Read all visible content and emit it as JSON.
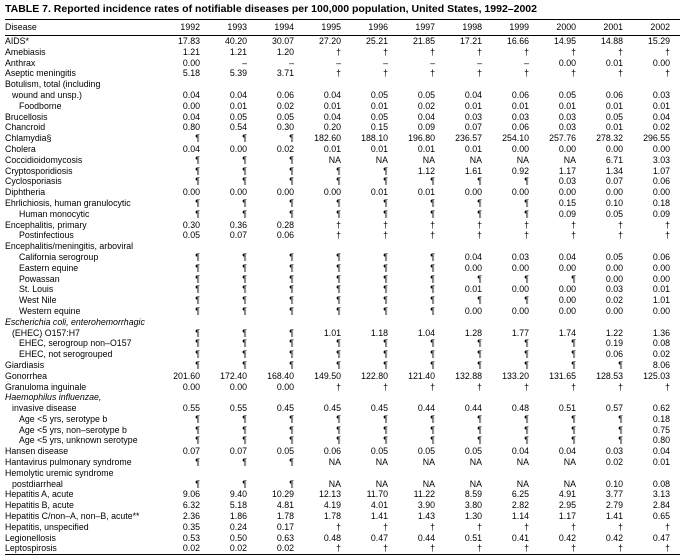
{
  "title": "TABLE 7.  Reported incidence rates of notifiable diseases per 100,000 population, United States, 1992–2002",
  "table": {
    "columns": [
      "Disease",
      "1992",
      "1993",
      "1994",
      "1995",
      "1996",
      "1997",
      "1998",
      "1999",
      "2000",
      "2001",
      "2002"
    ],
    "rows": [
      {
        "label": "AIDS*",
        "indent": 0,
        "italic": false,
        "values": [
          "17.83",
          "40.20",
          "30.07",
          "27.20",
          "25.21",
          "21.85",
          "17.21",
          "16.66",
          "14.95",
          "14.88",
          "15.29"
        ]
      },
      {
        "label": "Amebiasis",
        "indent": 0,
        "italic": false,
        "values": [
          "1.21",
          "1.21",
          "1.20",
          "†",
          "†",
          "†",
          "†",
          "†",
          "†",
          "†",
          "†"
        ]
      },
      {
        "label": "Anthrax",
        "indent": 0,
        "italic": false,
        "values": [
          "0.00",
          "–",
          "–",
          "–",
          "–",
          "–",
          "–",
          "–",
          "0.00",
          "0.01",
          "0.00"
        ]
      },
      {
        "label": "Aseptic meningitis",
        "indent": 0,
        "italic": false,
        "values": [
          "5.18",
          "5.39",
          "3.71",
          "†",
          "†",
          "†",
          "†",
          "†",
          "†",
          "†",
          "†"
        ]
      },
      {
        "label": "Botulism, total (including",
        "indent": 0,
        "italic": false,
        "values": []
      },
      {
        "label": "wound and unsp.)",
        "indent": 1,
        "italic": false,
        "values": [
          "0.04",
          "0.04",
          "0.06",
          "0.04",
          "0.05",
          "0.05",
          "0.04",
          "0.06",
          "0.05",
          "0.06",
          "0.03"
        ]
      },
      {
        "label": "Foodborne",
        "indent": 2,
        "italic": false,
        "values": [
          "0.00",
          "0.01",
          "0.02",
          "0.01",
          "0.01",
          "0.02",
          "0.01",
          "0.01",
          "0.01",
          "0.01",
          "0.01"
        ]
      },
      {
        "label": "Brucellosis",
        "indent": 0,
        "italic": false,
        "values": [
          "0.04",
          "0.05",
          "0.05",
          "0.04",
          "0.05",
          "0.04",
          "0.03",
          "0.03",
          "0.03",
          "0.05",
          "0.04"
        ]
      },
      {
        "label": "Chancroid",
        "indent": 0,
        "italic": false,
        "values": [
          "0.80",
          "0.54",
          "0.30",
          "0.20",
          "0.15",
          "0.09",
          "0.07",
          "0.06",
          "0.03",
          "0.01",
          "0.02"
        ]
      },
      {
        "label": "Chlamydia§",
        "indent": 0,
        "italic": false,
        "values": [
          "¶",
          "¶",
          "¶",
          "182.60",
          "188.10",
          "196.80",
          "236.57",
          "254.10",
          "257.76",
          "278.32",
          "296.55"
        ]
      },
      {
        "label": "Cholera",
        "indent": 0,
        "italic": false,
        "values": [
          "0.04",
          "0.00",
          "0.02",
          "0.01",
          "0.01",
          "0.01",
          "0.01",
          "0.00",
          "0.00",
          "0.00",
          "0.00"
        ]
      },
      {
        "label": "Coccidioidomycosis",
        "indent": 0,
        "italic": false,
        "values": [
          "¶",
          "¶",
          "¶",
          "NA",
          "NA",
          "NA",
          "NA",
          "NA",
          "NA",
          "6.71",
          "3.03"
        ]
      },
      {
        "label": "Cryptosporidiosis",
        "indent": 0,
        "italic": false,
        "values": [
          "¶",
          "¶",
          "¶",
          "¶",
          "¶",
          "1.12",
          "1.61",
          "0.92",
          "1.17",
          "1.34",
          "1.07"
        ]
      },
      {
        "label": "Cyclosporiasis",
        "indent": 0,
        "italic": false,
        "values": [
          "¶",
          "¶",
          "¶",
          "¶",
          "¶",
          "¶",
          "¶",
          "¶",
          "0.03",
          "0.07",
          "0.06"
        ]
      },
      {
        "label": "Diphtheria",
        "indent": 0,
        "italic": false,
        "values": [
          "0.00",
          "0.00",
          "0.00",
          "0.00",
          "0.01",
          "0.01",
          "0.00",
          "0.00",
          "0.00",
          "0.00",
          "0.00"
        ]
      },
      {
        "label": "Ehrlichiosis, human granulocytic",
        "indent": 0,
        "italic": false,
        "values": [
          "¶",
          "¶",
          "¶",
          "¶",
          "¶",
          "¶",
          "¶",
          "¶",
          "0.15",
          "0.10",
          "0.18"
        ]
      },
      {
        "label": "Human monocytic",
        "indent": 2,
        "italic": false,
        "values": [
          "¶",
          "¶",
          "¶",
          "¶",
          "¶",
          "¶",
          "¶",
          "¶",
          "0.09",
          "0.05",
          "0.09"
        ]
      },
      {
        "label": "Encephalitis, primary",
        "indent": 0,
        "italic": false,
        "values": [
          "0.30",
          "0.36",
          "0.28",
          "†",
          "†",
          "†",
          "†",
          "†",
          "†",
          "†",
          "†"
        ]
      },
      {
        "label": "Postinfectious",
        "indent": 2,
        "italic": false,
        "values": [
          "0.05",
          "0.07",
          "0.06",
          "†",
          "†",
          "†",
          "†",
          "†",
          "†",
          "†",
          "†"
        ]
      },
      {
        "label": "Encephalitis/meningitis, arboviral",
        "indent": 0,
        "italic": false,
        "values": []
      },
      {
        "label": "California serogroup",
        "indent": 2,
        "italic": false,
        "values": [
          "¶",
          "¶",
          "¶",
          "¶",
          "¶",
          "¶",
          "0.04",
          "0.03",
          "0.04",
          "0.05",
          "0.06"
        ]
      },
      {
        "label": "Eastern equine",
        "indent": 2,
        "italic": false,
        "values": [
          "¶",
          "¶",
          "¶",
          "¶",
          "¶",
          "¶",
          "0.00",
          "0.00",
          "0.00",
          "0.00",
          "0.00"
        ]
      },
      {
        "label": "Powassan",
        "indent": 2,
        "italic": false,
        "values": [
          "¶",
          "¶",
          "¶",
          "¶",
          "¶",
          "¶",
          "¶",
          "¶",
          "¶",
          "0.00",
          "0.00"
        ]
      },
      {
        "label": "St. Louis",
        "indent": 2,
        "italic": false,
        "values": [
          "¶",
          "¶",
          "¶",
          "¶",
          "¶",
          "¶",
          "0.01",
          "0.00",
          "0.00",
          "0.03",
          "0.01"
        ]
      },
      {
        "label": "West Nile",
        "indent": 2,
        "italic": false,
        "values": [
          "¶",
          "¶",
          "¶",
          "¶",
          "¶",
          "¶",
          "¶",
          "¶",
          "0.00",
          "0.02",
          "1.01"
        ]
      },
      {
        "label": "Western equine",
        "indent": 2,
        "italic": false,
        "values": [
          "¶",
          "¶",
          "¶",
          "¶",
          "¶",
          "¶",
          "0.00",
          "0.00",
          "0.00",
          "0.00",
          "0.00"
        ]
      },
      {
        "label": "Escherichia coli, enterohemorrhagic",
        "indent": 0,
        "italic": true,
        "values": []
      },
      {
        "label": "(EHEC) O157:H7",
        "indent": 1,
        "italic": false,
        "values": [
          "¶",
          "¶",
          "¶",
          "1.01",
          "1.18",
          "1.04",
          "1.28",
          "1.77",
          "1.74",
          "1.22",
          "1.36"
        ]
      },
      {
        "label": "EHEC, serogroup non–O157",
        "indent": 2,
        "italic": false,
        "values": [
          "¶",
          "¶",
          "¶",
          "¶",
          "¶",
          "¶",
          "¶",
          "¶",
          "¶",
          "0.19",
          "0.08"
        ]
      },
      {
        "label": "EHEC, not serogrouped",
        "indent": 2,
        "italic": false,
        "values": [
          "¶",
          "¶",
          "¶",
          "¶",
          "¶",
          "¶",
          "¶",
          "¶",
          "¶",
          "0.06",
          "0.02"
        ]
      },
      {
        "label": "Giardiasis",
        "indent": 0,
        "italic": false,
        "values": [
          "¶",
          "¶",
          "¶",
          "¶",
          "¶",
          "¶",
          "¶",
          "¶",
          "¶",
          "¶",
          "8.06"
        ]
      },
      {
        "label": "Gonorrhea",
        "indent": 0,
        "italic": false,
        "values": [
          "201.60",
          "172.40",
          "168.40",
          "149.50",
          "122.80",
          "121.40",
          "132.88",
          "133.20",
          "131.65",
          "128.53",
          "125.03"
        ]
      },
      {
        "label": "Granuloma inguinale",
        "indent": 0,
        "italic": false,
        "values": [
          "0.00",
          "0.00",
          "0.00",
          "†",
          "†",
          "†",
          "†",
          "†",
          "†",
          "†",
          "†"
        ]
      },
      {
        "label": "Haemophilus influenzae,",
        "indent": 0,
        "italic": true,
        "values": []
      },
      {
        "label": "invasive disease",
        "indent": 1,
        "italic": false,
        "values": [
          "0.55",
          "0.55",
          "0.45",
          "0.45",
          "0.45",
          "0.44",
          "0.44",
          "0.48",
          "0.51",
          "0.57",
          "0.62"
        ]
      },
      {
        "label": "Age <5 yrs, serotype b",
        "indent": 2,
        "italic": false,
        "values": [
          "¶",
          "¶",
          "¶",
          "¶",
          "¶",
          "¶",
          "¶",
          "¶",
          "¶",
          "¶",
          "0.18"
        ]
      },
      {
        "label": "Age <5 yrs, non–serotype b",
        "indent": 2,
        "italic": false,
        "values": [
          "¶",
          "¶",
          "¶",
          "¶",
          "¶",
          "¶",
          "¶",
          "¶",
          "¶",
          "¶",
          "0.75"
        ]
      },
      {
        "label": "Age <5 yrs, unknown serotype",
        "indent": 2,
        "italic": false,
        "values": [
          "¶",
          "¶",
          "¶",
          "¶",
          "¶",
          "¶",
          "¶",
          "¶",
          "¶",
          "¶",
          "0.80"
        ]
      },
      {
        "label": "Hansen disease",
        "indent": 0,
        "italic": false,
        "values": [
          "0.07",
          "0.07",
          "0.05",
          "0.06",
          "0.05",
          "0.05",
          "0.05",
          "0.04",
          "0.04",
          "0.03",
          "0.04"
        ]
      },
      {
        "label": "Hantavirus pulmonary syndrome",
        "indent": 0,
        "italic": false,
        "values": [
          "¶",
          "¶",
          "¶",
          "NA",
          "NA",
          "NA",
          "NA",
          "NA",
          "NA",
          "0.02",
          "0.01"
        ]
      },
      {
        "label": "Hemolytic uremic syndrome",
        "indent": 0,
        "italic": false,
        "values": []
      },
      {
        "label": "postdiarrheal",
        "indent": 1,
        "italic": false,
        "values": [
          "¶",
          "¶",
          "¶",
          "NA",
          "NA",
          "NA",
          "NA",
          "NA",
          "NA",
          "0.10",
          "0.08"
        ]
      },
      {
        "label": "Hepatitis A, acute",
        "indent": 0,
        "italic": false,
        "values": [
          "9.06",
          "9.40",
          "10.29",
          "12.13",
          "11.70",
          "11.22",
          "8.59",
          "6.25",
          "4.91",
          "3.77",
          "3.13"
        ]
      },
      {
        "label": "Hepatitis B, acute",
        "indent": 0,
        "italic": false,
        "values": [
          "6.32",
          "5.18",
          "4.81",
          "4.19",
          "4.01",
          "3.90",
          "3.80",
          "2.82",
          "2.95",
          "2.79",
          "2.84"
        ]
      },
      {
        "label": "Hepatitis C/non–A, non–B, acute**",
        "indent": 0,
        "italic": false,
        "values": [
          "2.36",
          "1.86",
          "1.78",
          "1.78",
          "1.41",
          "1.43",
          "1.30",
          "1.14",
          "1.17",
          "1.41",
          "0.65"
        ]
      },
      {
        "label": "Hepatitis, unspecified",
        "indent": 0,
        "italic": false,
        "values": [
          "0.35",
          "0.24",
          "0.17",
          "†",
          "†",
          "†",
          "†",
          "†",
          "†",
          "†",
          "†"
        ]
      },
      {
        "label": "Legionellosis",
        "indent": 0,
        "italic": false,
        "values": [
          "0.53",
          "0.50",
          "0.63",
          "0.48",
          "0.47",
          "0.44",
          "0.51",
          "0.41",
          "0.42",
          "0.42",
          "0.47"
        ]
      },
      {
        "label": "Leptospirosis",
        "indent": 0,
        "italic": false,
        "values": [
          "0.02",
          "0.02",
          "0.02",
          "†",
          "†",
          "†",
          "†",
          "†",
          "†",
          "†",
          "†"
        ]
      }
    ]
  }
}
